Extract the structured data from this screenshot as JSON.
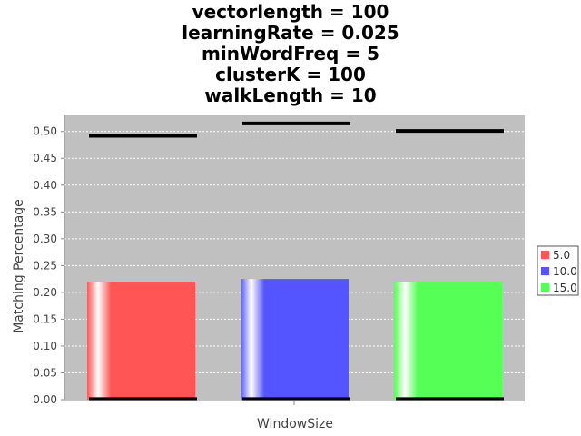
{
  "chart_data": {
    "type": "bar",
    "title_lines": [
      "vectorlength = 100",
      "learningRate = 0.025",
      "minWordFreq = 5",
      "clusterK = 100",
      "walkLength = 10"
    ],
    "xlabel": "WindowSize",
    "ylabel": "Matching Percentage",
    "ylim": [
      0,
      0.53
    ],
    "yticks": [
      "0.00",
      "0.05",
      "0.10",
      "0.15",
      "0.20",
      "0.25",
      "0.30",
      "0.35",
      "0.40",
      "0.45",
      "0.50"
    ],
    "grid": true,
    "legend_position": "right",
    "series": [
      {
        "name": "5.0",
        "value": 0.22,
        "upper": 0.492,
        "lower": 0.002,
        "color": "#ff5555"
      },
      {
        "name": "10.0",
        "value": 0.225,
        "upper": 0.515,
        "lower": 0.002,
        "color": "#5555ff"
      },
      {
        "name": "15.0",
        "value": 0.22,
        "upper": 0.501,
        "lower": 0.002,
        "color": "#55ff55"
      }
    ]
  }
}
